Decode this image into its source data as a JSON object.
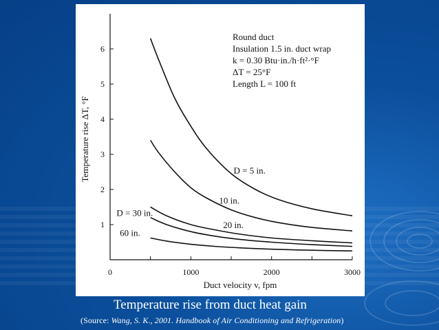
{
  "caption": {
    "title": "Temperature rise from duct heat gain",
    "source_prefix": "(Source: ",
    "source_italic": "Wang, S. K., 2001. Handbook of Air Conditioning and Refrigeration",
    "source_suffix": ")"
  },
  "colors": {
    "background": "#0b4f9c",
    "figure_bg": "#ffffff",
    "ink": "#111111",
    "caption_text": "#ffffff"
  },
  "chart_data": {
    "type": "line",
    "title": "",
    "xlabel": "Duct velocity v, fpm",
    "ylabel": "Temperature rise ΔT, °F",
    "xlim": [
      0,
      3000
    ],
    "ylim": [
      0,
      7
    ],
    "x_ticks": [
      "0",
      "1000",
      "2000",
      "3000"
    ],
    "y_ticks": [
      "1",
      "2",
      "3",
      "4",
      "5",
      "6"
    ],
    "legend": "none",
    "annotation_lines": [
      "Round duct",
      "Insulation 1.5 in. duct wrap",
      "k = 0.30 Btu·in./h·ft²·°F",
      "ΔT = 25°F",
      "Length L = 100 ft"
    ],
    "series": [
      {
        "name": "D = 5 in.",
        "x": [
          500,
          600,
          800,
          1000,
          1200,
          1500,
          1800,
          2100,
          2500,
          3000
        ],
        "y": [
          6.3,
          5.7,
          4.6,
          3.8,
          3.15,
          2.45,
          2.0,
          1.7,
          1.45,
          1.25
        ]
      },
      {
        "name": "10 in.",
        "x": [
          500,
          600,
          800,
          1000,
          1200,
          1500,
          1800,
          2100,
          2500,
          3000
        ],
        "y": [
          3.4,
          3.05,
          2.5,
          2.05,
          1.75,
          1.42,
          1.2,
          1.05,
          0.92,
          0.82
        ]
      },
      {
        "name": "20 in.",
        "x": [
          500,
          700,
          1000,
          1300,
          1600,
          2000,
          2500,
          3000
        ],
        "y": [
          1.5,
          1.25,
          1.0,
          0.85,
          0.73,
          0.62,
          0.54,
          0.48
        ]
      },
      {
        "name": "D = 30 in.",
        "x": [
          500,
          700,
          1000,
          1300,
          1600,
          2000,
          2500,
          3000
        ],
        "y": [
          1.2,
          1.0,
          0.8,
          0.67,
          0.58,
          0.5,
          0.43,
          0.38
        ]
      },
      {
        "name": "60 in.",
        "x": [
          500,
          700,
          1000,
          1300,
          1600,
          2000,
          2500,
          3000
        ],
        "y": [
          0.62,
          0.53,
          0.44,
          0.38,
          0.34,
          0.3,
          0.27,
          0.25
        ]
      }
    ]
  }
}
